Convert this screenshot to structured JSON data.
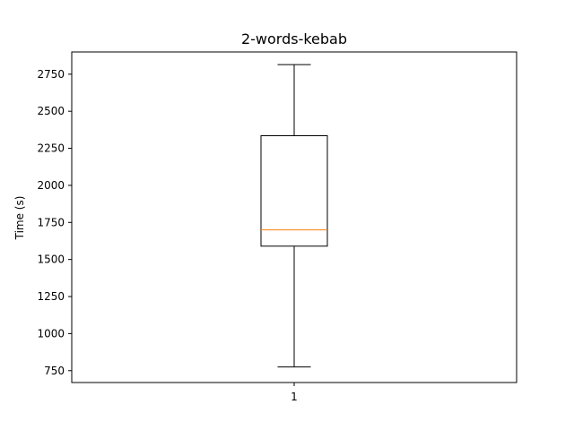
{
  "chart_data": {
    "type": "box",
    "title": "2-words-kebab",
    "xlabel": "",
    "ylabel": "Time (s)",
    "categories": [
      "1"
    ],
    "boxes": [
      {
        "category": "1",
        "whisker_low": 775,
        "q1": 1590,
        "median": 1700,
        "q3": 2335,
        "whisker_high": 2815
      }
    ],
    "ylim": [
      670,
      2900
    ],
    "yticks": [
      750,
      1000,
      1250,
      1500,
      1750,
      2000,
      2250,
      2500,
      2750
    ],
    "ytick_labels": [
      "750",
      "1000",
      "1250",
      "1500",
      "1750",
      "2000",
      "2250",
      "2500",
      "2750"
    ],
    "grid": false,
    "colors": {
      "box": "#000000",
      "median": "#ff7f0e",
      "whisker": "#000000",
      "background": "#ffffff"
    }
  }
}
